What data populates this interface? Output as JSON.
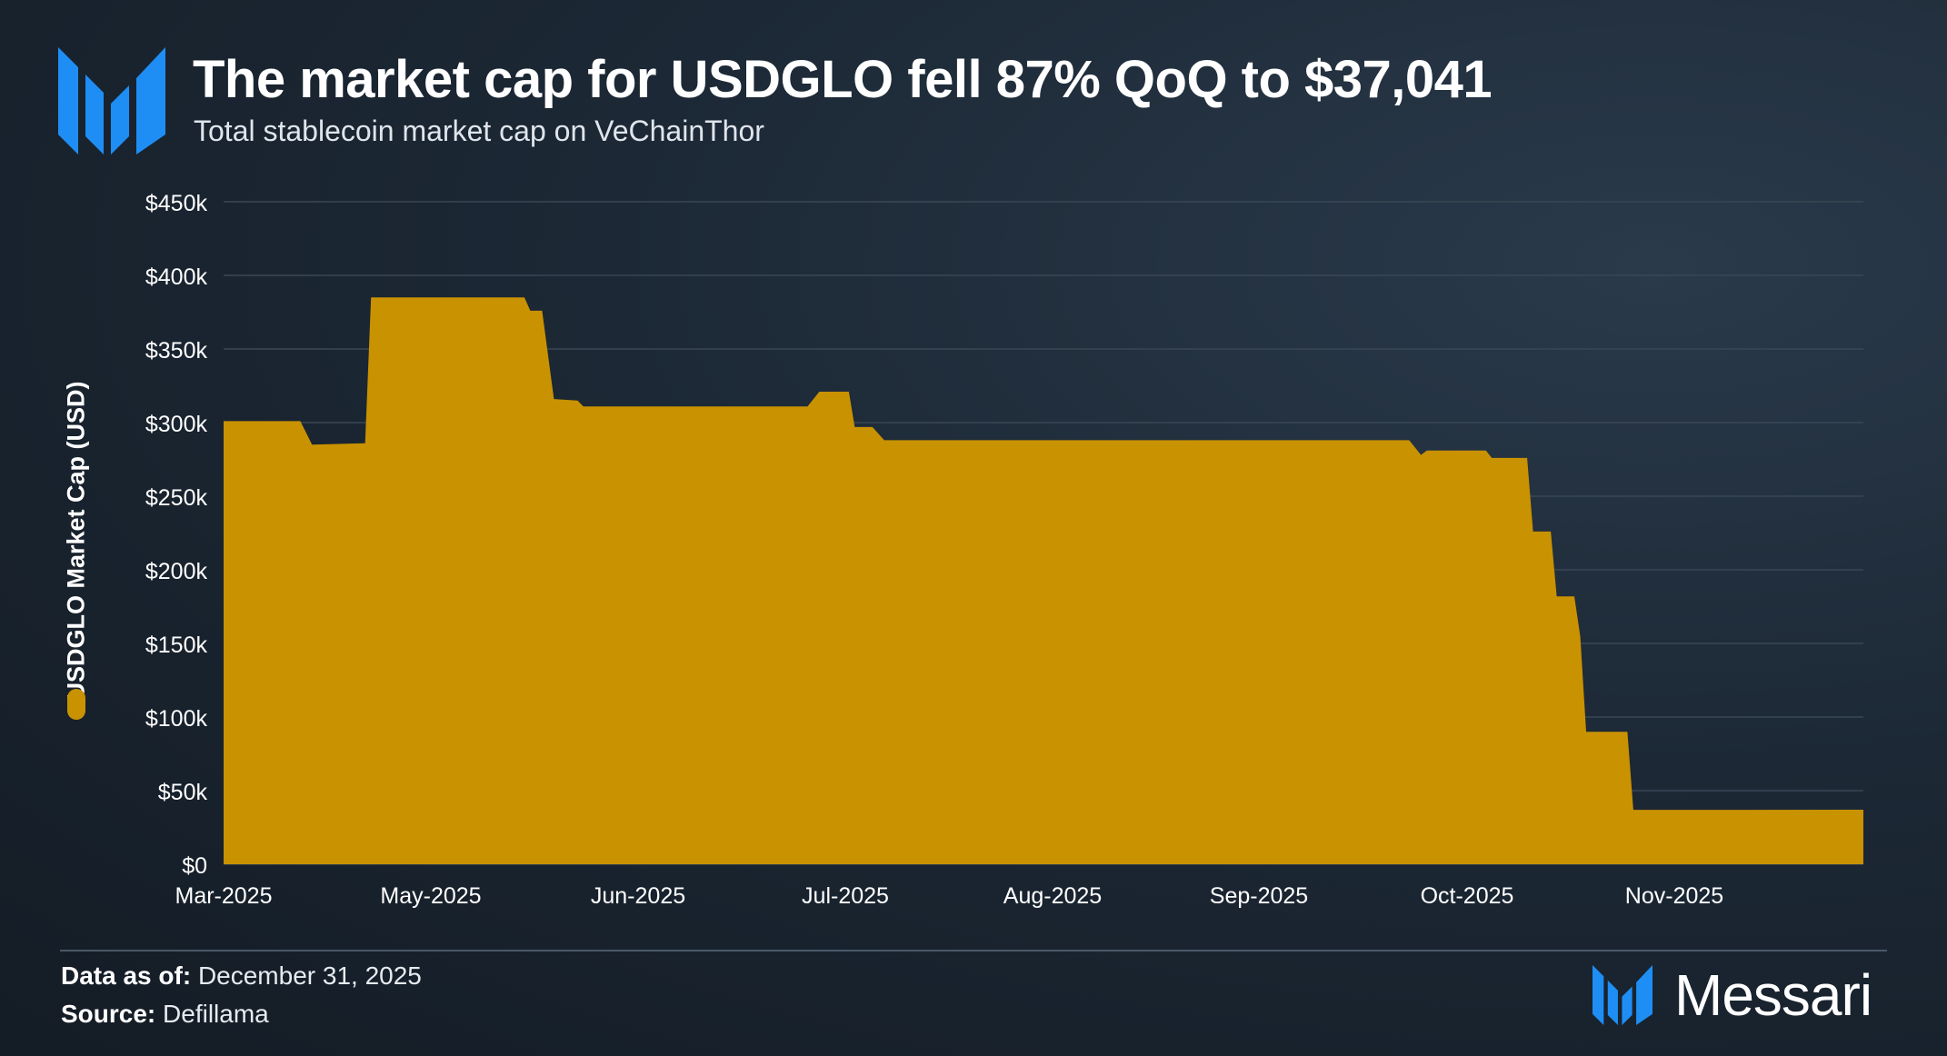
{
  "header": {
    "title": "The market cap for USDGLO fell 87% QoQ to $37,041",
    "subtitle": "Total stablecoin market cap on VeChainThor"
  },
  "colors": {
    "background": "#18212c",
    "area_fill": "#c99200",
    "logo_blue": "#1e8ef5",
    "grid": "#3a4654"
  },
  "chart_data": {
    "type": "area",
    "title": "The market cap for USDGLO fell 87% QoQ to $37,041",
    "subtitle": "Total stablecoin market cap on VeChainThor",
    "xlabel": "",
    "ylabel": "USDGLO Market Cap (USD)",
    "ylim": [
      0,
      450000
    ],
    "yticks": [
      "$0",
      "$50k",
      "$100k",
      "$150k",
      "$200k",
      "$250k",
      "$300k",
      "$350k",
      "$400k",
      "$450k"
    ],
    "xticks": [
      "Mar-2025",
      "May-2025",
      "Jun-2025",
      "Jul-2025",
      "Aug-2025",
      "Sep-2025",
      "Oct-2025",
      "Nov-2025"
    ],
    "grid": true,
    "legend": "left, vertical",
    "series": [
      {
        "name": "USDGLO Market Cap (USD)",
        "points": [
          [
            "2025-03-01",
            301000
          ],
          [
            "2025-03-14",
            301000
          ],
          [
            "2025-03-16",
            285000
          ],
          [
            "2025-03-25",
            286000
          ],
          [
            "2025-03-26",
            385000
          ],
          [
            "2025-04-15",
            385000
          ],
          [
            "2025-04-21",
            385000
          ],
          [
            "2025-04-22",
            376000
          ],
          [
            "2025-04-24",
            376000
          ],
          [
            "2025-04-26",
            316000
          ],
          [
            "2025-04-30",
            315000
          ],
          [
            "2025-05-01",
            311000
          ],
          [
            "2025-05-15",
            311000
          ],
          [
            "2025-06-01",
            311000
          ],
          [
            "2025-06-08",
            311000
          ],
          [
            "2025-06-10",
            321000
          ],
          [
            "2025-06-15",
            321000
          ],
          [
            "2025-06-16",
            297000
          ],
          [
            "2025-06-19",
            297000
          ],
          [
            "2025-06-21",
            288000
          ],
          [
            "2025-07-15",
            288000
          ],
          [
            "2025-08-15",
            288000
          ],
          [
            "2025-09-15",
            288000
          ],
          [
            "2025-09-18",
            288000
          ],
          [
            "2025-09-20",
            278000
          ],
          [
            "2025-09-21",
            281000
          ],
          [
            "2025-10-01",
            281000
          ],
          [
            "2025-10-02",
            276000
          ],
          [
            "2025-10-08",
            276000
          ],
          [
            "2025-10-09",
            226000
          ],
          [
            "2025-10-12",
            226000
          ],
          [
            "2025-10-13",
            182000
          ],
          [
            "2025-10-16",
            182000
          ],
          [
            "2025-10-17",
            155000
          ],
          [
            "2025-10-18",
            90000
          ],
          [
            "2025-10-25",
            90000
          ],
          [
            "2025-10-26",
            37000
          ],
          [
            "2025-11-15",
            37000
          ],
          [
            "2025-12-04",
            37041
          ]
        ]
      }
    ]
  },
  "footer": {
    "data_as_of_label": "Data as of:",
    "data_as_of_value": "December 31, 2025",
    "source_label": "Source:",
    "source_value": "Defillama"
  },
  "brand": {
    "name": "Messari"
  }
}
